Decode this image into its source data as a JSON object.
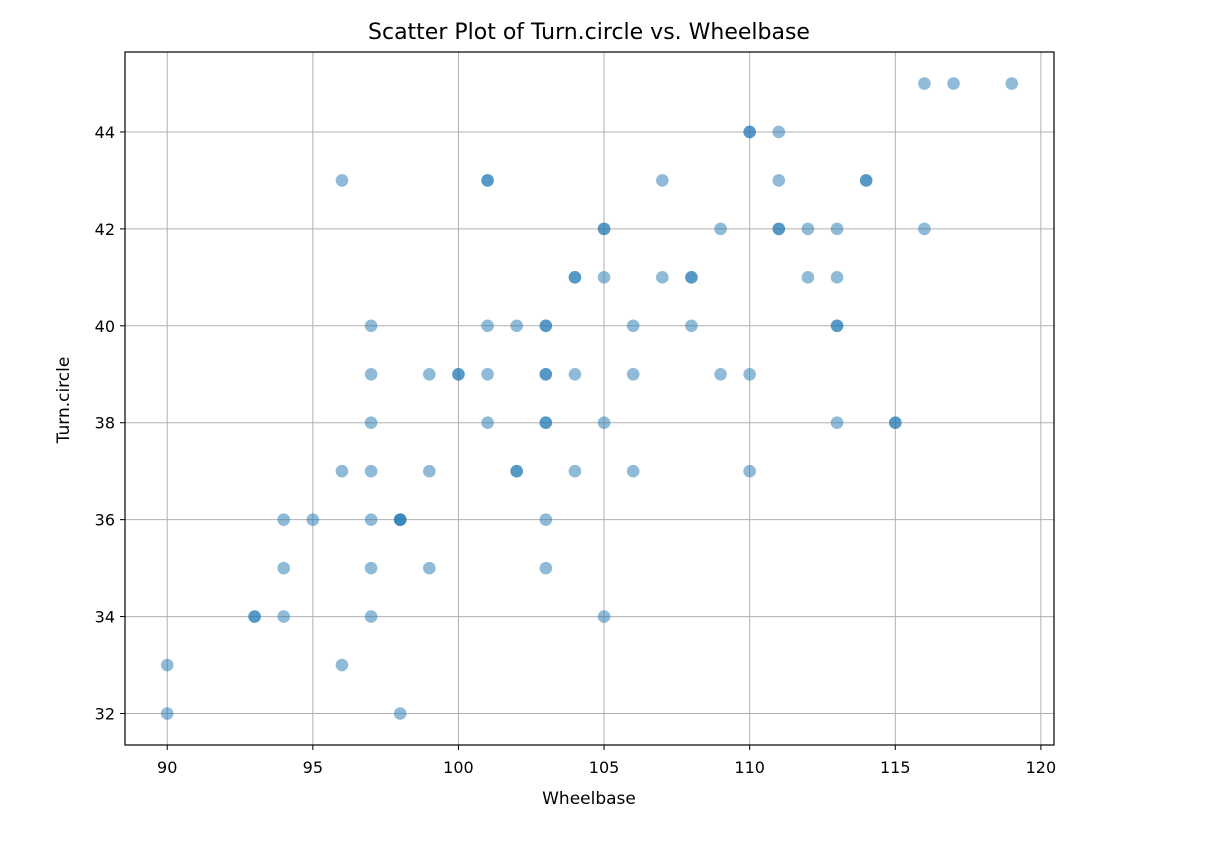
{
  "chart_data": {
    "type": "scatter",
    "title": "Scatter Plot of Turn.circle vs. Wheelbase",
    "xlabel": "Wheelbase",
    "ylabel": "Turn.circle",
    "xlim": [
      88.55,
      120.45
    ],
    "ylim": [
      31.35,
      45.65
    ],
    "xticks": [
      90,
      95,
      100,
      105,
      110,
      115,
      120
    ],
    "yticks": [
      32,
      34,
      36,
      38,
      40,
      42,
      44
    ],
    "grid": true,
    "marker_color": "#1f77b4",
    "marker_alpha": 0.5,
    "points": [
      [
        116,
        45
      ],
      [
        117,
        45
      ],
      [
        119,
        45
      ],
      [
        110,
        44
      ],
      [
        110,
        44
      ],
      [
        111,
        44
      ],
      [
        96,
        43
      ],
      [
        101,
        43
      ],
      [
        101,
        43
      ],
      [
        107,
        43
      ],
      [
        111,
        43
      ],
      [
        114,
        43
      ],
      [
        114,
        43
      ],
      [
        105,
        42
      ],
      [
        105,
        42
      ],
      [
        109,
        42
      ],
      [
        111,
        42
      ],
      [
        111,
        42
      ],
      [
        112,
        42
      ],
      [
        113,
        42
      ],
      [
        116,
        42
      ],
      [
        104,
        41
      ],
      [
        104,
        41
      ],
      [
        105,
        41
      ],
      [
        107,
        41
      ],
      [
        108,
        41
      ],
      [
        108,
        41
      ],
      [
        112,
        41
      ],
      [
        113,
        41
      ],
      [
        97,
        40
      ],
      [
        101,
        40
      ],
      [
        102,
        40
      ],
      [
        103,
        40
      ],
      [
        103,
        40
      ],
      [
        106,
        40
      ],
      [
        108,
        40
      ],
      [
        113,
        40
      ],
      [
        113,
        40
      ],
      [
        97,
        39
      ],
      [
        99,
        39
      ],
      [
        100,
        39
      ],
      [
        100,
        39
      ],
      [
        101,
        39
      ],
      [
        103,
        39
      ],
      [
        103,
        39
      ],
      [
        104,
        39
      ],
      [
        106,
        39
      ],
      [
        109,
        39
      ],
      [
        110,
        39
      ],
      [
        97,
        38
      ],
      [
        101,
        38
      ],
      [
        103,
        38
      ],
      [
        103,
        38
      ],
      [
        105,
        38
      ],
      [
        113,
        38
      ],
      [
        115,
        38
      ],
      [
        115,
        38
      ],
      [
        96,
        37
      ],
      [
        97,
        37
      ],
      [
        99,
        37
      ],
      [
        102,
        37
      ],
      [
        102,
        37
      ],
      [
        104,
        37
      ],
      [
        106,
        37
      ],
      [
        110,
        37
      ],
      [
        94,
        36
      ],
      [
        95,
        36
      ],
      [
        97,
        36
      ],
      [
        98,
        36
      ],
      [
        98,
        36
      ],
      [
        98,
        36
      ],
      [
        103,
        36
      ],
      [
        94,
        35
      ],
      [
        97,
        35
      ],
      [
        99,
        35
      ],
      [
        103,
        35
      ],
      [
        93,
        34
      ],
      [
        93,
        34
      ],
      [
        94,
        34
      ],
      [
        97,
        34
      ],
      [
        105,
        34
      ],
      [
        90,
        33
      ],
      [
        96,
        33
      ],
      [
        90,
        32
      ],
      [
        98,
        32
      ]
    ]
  }
}
